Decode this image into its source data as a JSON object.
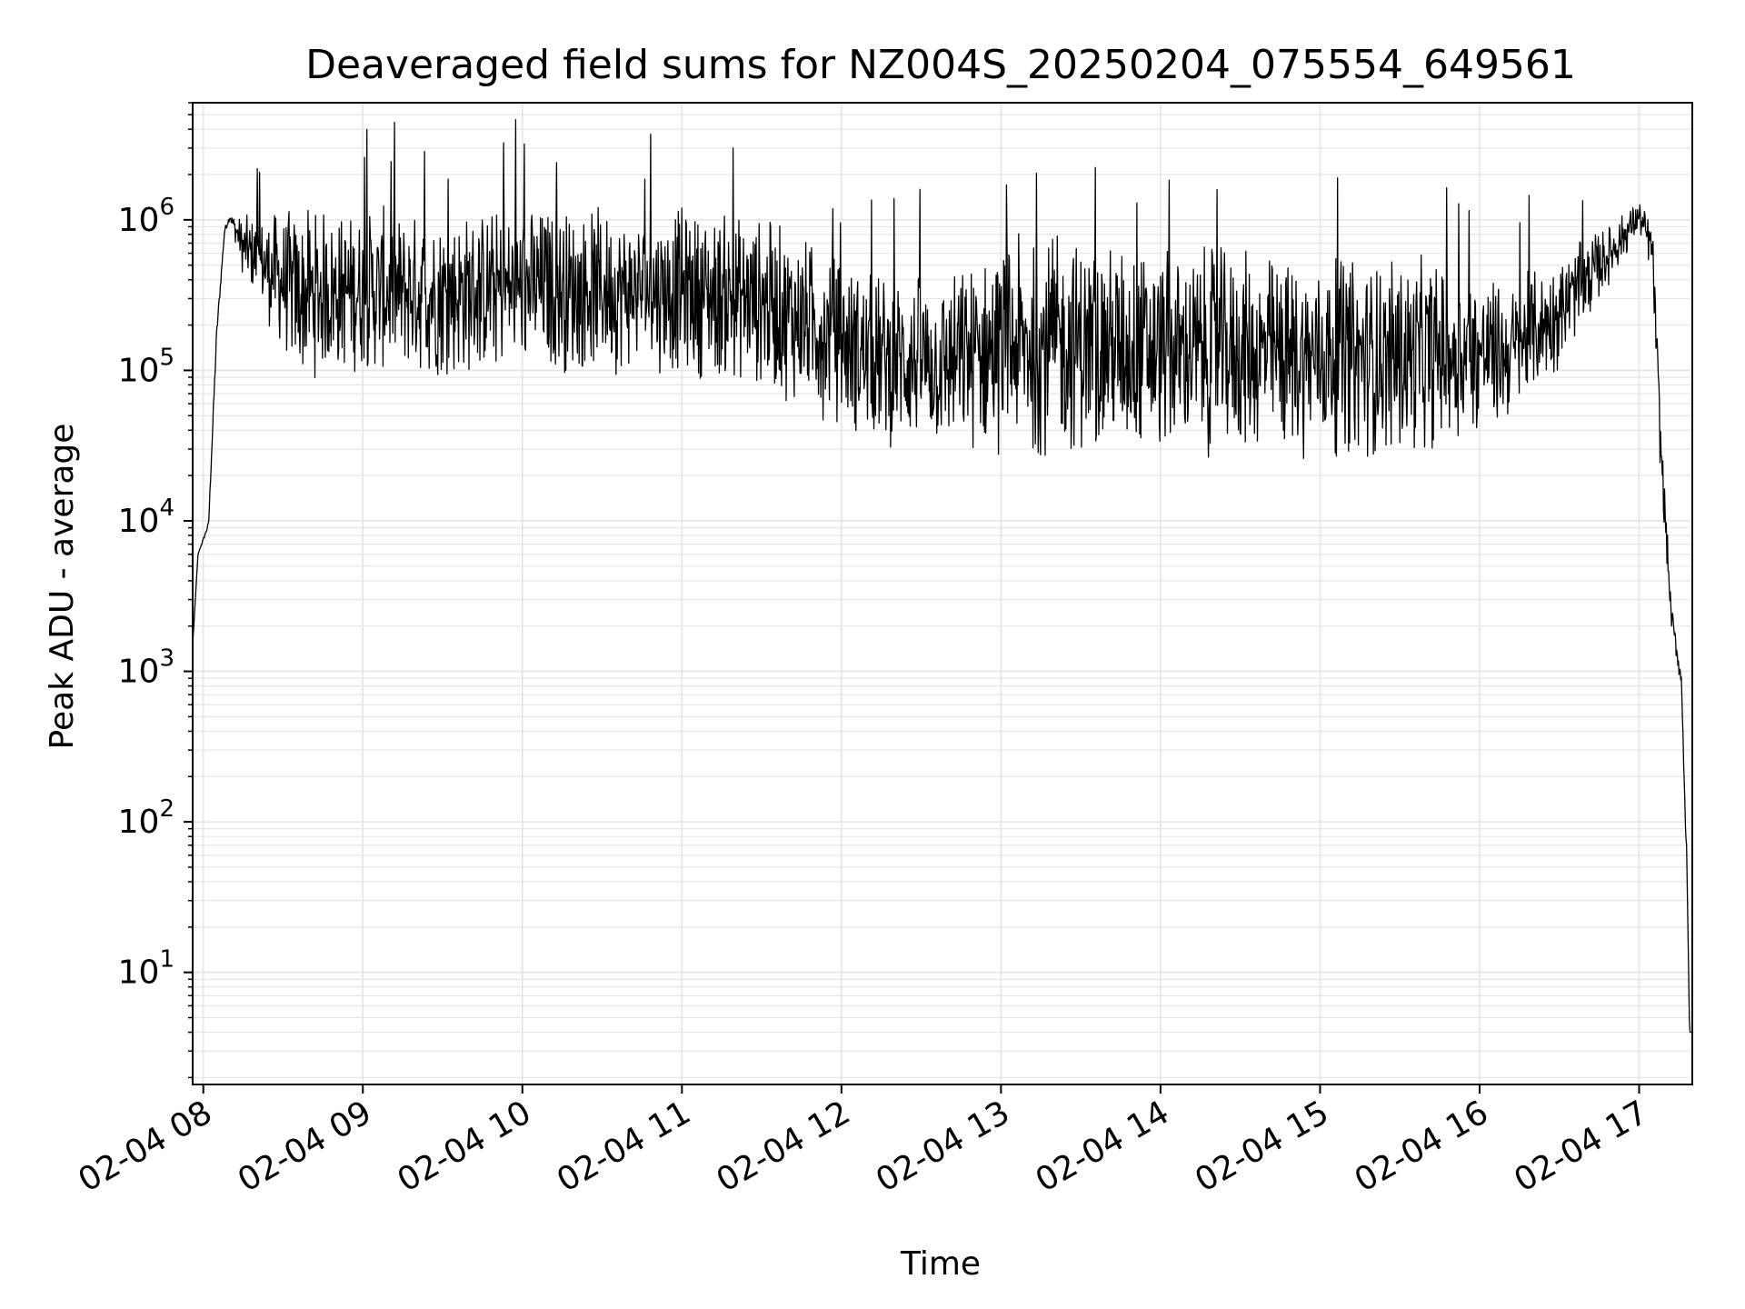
{
  "chart_data": {
    "type": "line",
    "title": "Deaveraged field sums for NZ004S_20250204_075554_649561",
    "xlabel": "Time",
    "ylabel": "Peak ADU - average",
    "y_scale": "log",
    "ylim": [
      1.8,
      6000000
    ],
    "xlim": [
      "02-04 07:56",
      "02-04 17:20"
    ],
    "grid": "major and minor",
    "line_color": "#000000",
    "grid_color": "#e5e5e5",
    "x_ticks": [
      "02-04 08",
      "02-04 09",
      "02-04 10",
      "02-04 11",
      "02-04 12",
      "02-04 13",
      "02-04 14",
      "02-04 15",
      "02-04 16",
      "02-04 17"
    ],
    "y_ticks": [
      {
        "base": "10",
        "exp": "1"
      },
      {
        "base": "10",
        "exp": "2"
      },
      {
        "base": "10",
        "exp": "3"
      },
      {
        "base": "10",
        "exp": "4"
      },
      {
        "base": "10",
        "exp": "5"
      },
      {
        "base": "10",
        "exp": "6"
      }
    ],
    "envelope": {
      "t": [
        "02-04 07:56",
        "02-04 07:58",
        "02-04 08:02",
        "02-04 08:05",
        "02-04 08:08",
        "02-04 08:10",
        "02-04 08:15",
        "02-04 08:25",
        "02-04 08:35",
        "02-04 09:00",
        "02-04 09:30",
        "02-04 10:00",
        "02-04 10:30",
        "02-04 11:00",
        "02-04 11:30",
        "02-04 11:50",
        "02-04 12:10",
        "02-04 12:40",
        "02-04 13:00",
        "02-04 13:30",
        "02-04 14:00",
        "02-04 14:30",
        "02-04 15:00",
        "02-04 15:30",
        "02-04 15:50",
        "02-04 16:10",
        "02-04 16:30",
        "02-04 16:50",
        "02-04 17:00",
        "02-04 17:05",
        "02-04 17:08",
        "02-04 17:12",
        "02-04 17:16",
        "02-04 17:18",
        "02-04 17:19",
        "02-04 17:20"
      ],
      "low": [
        1500,
        6000,
        9000,
        150000,
        800000,
        1000000,
        400000,
        180000,
        80000,
        90000,
        80000,
        90000,
        90000,
        90000,
        70000,
        50000,
        30000,
        25000,
        25000,
        25000,
        25000,
        25000,
        25000,
        25000,
        30000,
        40000,
        100000,
        400000,
        800000,
        400000,
        20000,
        2000,
        700,
        30,
        4,
        4
      ],
      "high": [
        1500,
        6000,
        10000,
        200000,
        900000,
        1100000,
        1100000,
        1200000,
        1300000,
        1300000,
        1300000,
        1400000,
        1300000,
        1300000,
        1200000,
        800000,
        500000,
        500000,
        800000,
        900000,
        700000,
        700000,
        600000,
        600000,
        600000,
        400000,
        600000,
        1000000,
        1400000,
        1000000,
        60000,
        3000,
        1000,
        60,
        4,
        4
      ],
      "spike_band": [
        [
          "02-04 08:20",
          "02-04 16:40"
        ]
      ]
    }
  }
}
